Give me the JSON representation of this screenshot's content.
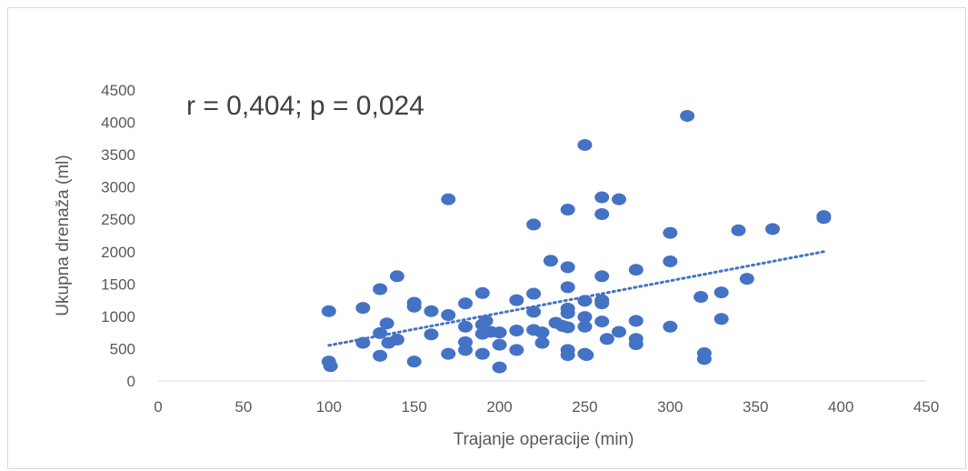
{
  "chart_data": {
    "type": "scatter",
    "title": "",
    "xlabel": "Trajanje operacije (min)",
    "ylabel": "Ukupna drenaža (ml)",
    "annotation": "r = 0,404; p = 0,024",
    "xlim": [
      0,
      450
    ],
    "ylim": [
      0,
      4500
    ],
    "x_ticks": [
      "0",
      "50",
      "100",
      "150",
      "200",
      "250",
      "300",
      "350",
      "400",
      "450"
    ],
    "y_ticks": [
      "0",
      "500",
      "1000",
      "1500",
      "2000",
      "2500",
      "3000",
      "3500",
      "4000",
      "4500"
    ],
    "grid": false,
    "marker_color": "#4472c4",
    "trendline": {
      "style": "dotted",
      "color": "#4472c4",
      "x": [
        100,
        390
      ],
      "y": [
        550,
        2000
      ]
    },
    "points": [
      {
        "x": 100,
        "y": 1080
      },
      {
        "x": 100,
        "y": 300
      },
      {
        "x": 101,
        "y": 230
      },
      {
        "x": 120,
        "y": 1130
      },
      {
        "x": 120,
        "y": 590
      },
      {
        "x": 130,
        "y": 1420
      },
      {
        "x": 130,
        "y": 740
      },
      {
        "x": 130,
        "y": 390
      },
      {
        "x": 134,
        "y": 890
      },
      {
        "x": 135,
        "y": 590
      },
      {
        "x": 140,
        "y": 1620
      },
      {
        "x": 140,
        "y": 640
      },
      {
        "x": 150,
        "y": 1210
      },
      {
        "x": 150,
        "y": 1150
      },
      {
        "x": 150,
        "y": 300
      },
      {
        "x": 160,
        "y": 1080
      },
      {
        "x": 160,
        "y": 720
      },
      {
        "x": 170,
        "y": 2810
      },
      {
        "x": 170,
        "y": 1020
      },
      {
        "x": 170,
        "y": 420
      },
      {
        "x": 180,
        "y": 1200
      },
      {
        "x": 180,
        "y": 840
      },
      {
        "x": 180,
        "y": 600
      },
      {
        "x": 180,
        "y": 480
      },
      {
        "x": 190,
        "y": 1360
      },
      {
        "x": 190,
        "y": 870
      },
      {
        "x": 190,
        "y": 730
      },
      {
        "x": 190,
        "y": 420
      },
      {
        "x": 192,
        "y": 930
      },
      {
        "x": 195,
        "y": 760
      },
      {
        "x": 200,
        "y": 750
      },
      {
        "x": 200,
        "y": 560
      },
      {
        "x": 200,
        "y": 210
      },
      {
        "x": 210,
        "y": 1250
      },
      {
        "x": 210,
        "y": 780
      },
      {
        "x": 210,
        "y": 480
      },
      {
        "x": 220,
        "y": 2420
      },
      {
        "x": 220,
        "y": 1350
      },
      {
        "x": 220,
        "y": 1070
      },
      {
        "x": 220,
        "y": 790
      },
      {
        "x": 225,
        "y": 750
      },
      {
        "x": 225,
        "y": 590
      },
      {
        "x": 230,
        "y": 1860
      },
      {
        "x": 233,
        "y": 900
      },
      {
        "x": 237,
        "y": 850
      },
      {
        "x": 240,
        "y": 2650
      },
      {
        "x": 240,
        "y": 1760
      },
      {
        "x": 240,
        "y": 1450
      },
      {
        "x": 240,
        "y": 1120
      },
      {
        "x": 240,
        "y": 1050
      },
      {
        "x": 240,
        "y": 830
      },
      {
        "x": 240,
        "y": 480
      },
      {
        "x": 240,
        "y": 400
      },
      {
        "x": 250,
        "y": 3650
      },
      {
        "x": 250,
        "y": 1240
      },
      {
        "x": 250,
        "y": 990
      },
      {
        "x": 250,
        "y": 840
      },
      {
        "x": 250,
        "y": 420
      },
      {
        "x": 251,
        "y": 400
      },
      {
        "x": 260,
        "y": 2840
      },
      {
        "x": 260,
        "y": 2580
      },
      {
        "x": 260,
        "y": 1620
      },
      {
        "x": 260,
        "y": 1250
      },
      {
        "x": 260,
        "y": 1200
      },
      {
        "x": 260,
        "y": 920
      },
      {
        "x": 263,
        "y": 650
      },
      {
        "x": 270,
        "y": 2810
      },
      {
        "x": 270,
        "y": 760
      },
      {
        "x": 280,
        "y": 1720
      },
      {
        "x": 280,
        "y": 930
      },
      {
        "x": 280,
        "y": 650
      },
      {
        "x": 280,
        "y": 570
      },
      {
        "x": 300,
        "y": 2290
      },
      {
        "x": 300,
        "y": 1850
      },
      {
        "x": 300,
        "y": 840
      },
      {
        "x": 310,
        "y": 4100
      },
      {
        "x": 318,
        "y": 1300
      },
      {
        "x": 320,
        "y": 430
      },
      {
        "x": 320,
        "y": 340
      },
      {
        "x": 330,
        "y": 1370
      },
      {
        "x": 330,
        "y": 960
      },
      {
        "x": 340,
        "y": 2330
      },
      {
        "x": 345,
        "y": 1580
      },
      {
        "x": 360,
        "y": 2350
      },
      {
        "x": 390,
        "y": 2550
      },
      {
        "x": 390,
        "y": 2520
      }
    ]
  }
}
